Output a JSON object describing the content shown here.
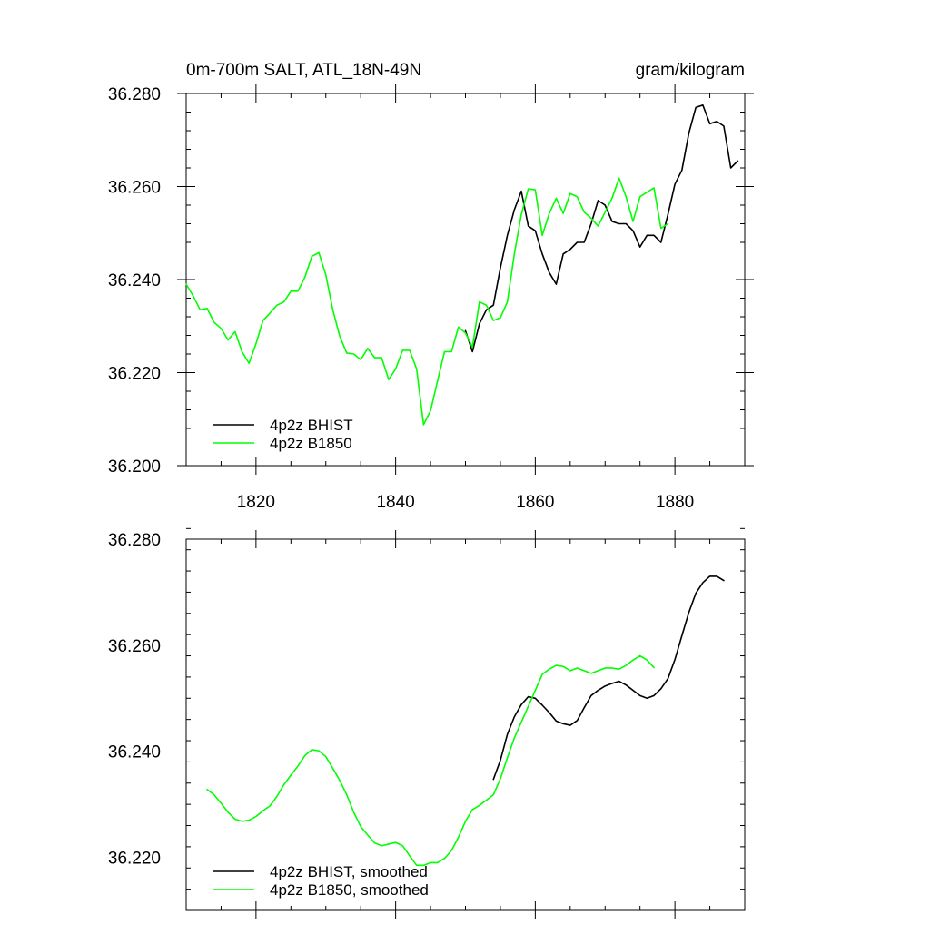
{
  "colors": {
    "bhist": "#000000",
    "b1850": "#00ff00",
    "frame": "#000000"
  },
  "chart_data": [
    {
      "type": "line",
      "title": "0m-700m SALT, ATL_18N-49N",
      "units": "gram/kilogram",
      "xlim": [
        1810,
        1890
      ],
      "ylim": [
        36.2,
        36.28
      ],
      "xticks": [
        1820,
        1840,
        1860,
        1880
      ],
      "xtick_labels": [
        "1820",
        "1840",
        "1860",
        "1880"
      ],
      "yticks": [
        36.2,
        36.22,
        36.24,
        36.26,
        36.28
      ],
      "ytick_labels": [
        "36.200",
        "36.220",
        "36.240",
        "36.260",
        "36.280"
      ],
      "legend_position": "bottom-left",
      "series": [
        {
          "name": "4p2z BHIST",
          "color": "#000000",
          "x": [
            1850,
            1851,
            1852,
            1853,
            1854,
            1855,
            1856,
            1857,
            1858,
            1859,
            1860,
            1861,
            1862,
            1863,
            1864,
            1865,
            1866,
            1867,
            1868,
            1869,
            1870,
            1871,
            1872,
            1873,
            1874,
            1875,
            1876,
            1877,
            1878,
            1879,
            1880,
            1881,
            1882,
            1883,
            1884,
            1885,
            1886,
            1887,
            1888,
            1889
          ],
          "values": [
            36.229,
            36.2245,
            36.2305,
            36.2335,
            36.2345,
            36.2425,
            36.2495,
            36.255,
            36.259,
            36.2515,
            36.2505,
            36.2455,
            36.2415,
            36.239,
            36.2455,
            36.2465,
            36.248,
            36.248,
            36.252,
            36.257,
            36.256,
            36.2525,
            36.252,
            36.252,
            36.2505,
            36.247,
            36.2495,
            36.2495,
            36.248,
            36.254,
            36.2605,
            36.2635,
            36.2715,
            36.277,
            36.2775,
            36.2735,
            36.274,
            36.273,
            36.264,
            36.2655
          ]
        },
        {
          "name": "4p2z B1850",
          "color": "#00ff00",
          "x": [
            1810,
            1811,
            1812,
            1813,
            1814,
            1815,
            1816,
            1817,
            1818,
            1819,
            1820,
            1821,
            1822,
            1823,
            1824,
            1825,
            1826,
            1827,
            1828,
            1829,
            1830,
            1831,
            1832,
            1833,
            1834,
            1835,
            1836,
            1837,
            1838,
            1839,
            1840,
            1841,
            1842,
            1843,
            1844,
            1845,
            1846,
            1847,
            1848,
            1849,
            1850,
            1851,
            1852,
            1853,
            1854,
            1855,
            1856,
            1857,
            1858,
            1859,
            1860,
            1861,
            1862,
            1863,
            1864,
            1865,
            1866,
            1867,
            1868,
            1869,
            1870,
            1871,
            1872,
            1873,
            1874,
            1875,
            1876,
            1877,
            1878,
            1879,
            1880
          ],
          "values": [
            36.239,
            36.2365,
            36.2335,
            36.2338,
            36.2308,
            36.2295,
            36.227,
            36.2288,
            36.2245,
            36.222,
            36.2262,
            36.2312,
            36.2328,
            36.2345,
            36.2352,
            36.2375,
            36.2375,
            36.2405,
            36.245,
            36.2458,
            36.241,
            36.2335,
            36.2278,
            36.2242,
            36.224,
            36.2228,
            36.2252,
            36.2232,
            36.2232,
            36.2185,
            36.2208,
            36.2248,
            36.2248,
            36.2208,
            36.2088,
            36.2118,
            36.2182,
            36.2245,
            36.2245,
            36.2298,
            36.2285,
            36.2255,
            36.2352,
            36.2345,
            36.2312,
            36.2318,
            36.2352,
            36.2455,
            36.254,
            36.2595,
            36.2593,
            36.2495,
            36.2542,
            36.2575,
            36.2542,
            36.2585,
            36.2578,
            36.2545,
            36.2532,
            36.2515,
            36.2545,
            36.2575,
            36.2618,
            36.2578,
            36.2525,
            36.2578,
            36.2588,
            36.2597,
            36.251,
            36.252,
            null
          ]
        }
      ]
    },
    {
      "type": "line",
      "title": "",
      "xlim": [
        1810,
        1890
      ],
      "ylim": [
        36.21,
        36.28
      ],
      "xticks": [
        1820,
        1840,
        1860,
        1880
      ],
      "yticks": [
        36.22,
        36.24,
        36.26,
        36.28
      ],
      "ytick_labels": [
        "36.220",
        "36.240",
        "36.260",
        "36.280"
      ],
      "legend_position": "bottom-left",
      "series": [
        {
          "name": "4p2z BHIST, smoothed",
          "color": "#000000",
          "x": [
            1854,
            1855,
            1856,
            1857,
            1858,
            1859,
            1860,
            1861,
            1862,
            1863,
            1864,
            1865,
            1866,
            1867,
            1868,
            1869,
            1870,
            1871,
            1872,
            1873,
            1874,
            1875,
            1876,
            1877,
            1878,
            1879,
            1880,
            1881,
            1882,
            1883,
            1884,
            1885,
            1886,
            1887,
            1888
          ],
          "values": [
            36.2347,
            36.2383,
            36.2432,
            36.2465,
            36.2488,
            36.2503,
            36.25,
            36.2487,
            36.2473,
            36.2457,
            36.2452,
            36.2449,
            36.2458,
            36.2482,
            36.2505,
            36.2515,
            36.2523,
            36.2528,
            36.2532,
            36.2525,
            36.2515,
            36.2505,
            36.25,
            36.2505,
            36.2518,
            36.2537,
            36.2573,
            36.2618,
            36.2662,
            36.2698,
            36.2718,
            36.273,
            36.273,
            36.2722,
            null
          ]
        },
        {
          "name": "4p2z B1850, smoothed",
          "color": "#00ff00",
          "x": [
            1813,
            1814,
            1815,
            1816,
            1817,
            1818,
            1819,
            1820,
            1821,
            1822,
            1823,
            1824,
            1825,
            1826,
            1827,
            1828,
            1829,
            1830,
            1831,
            1832,
            1833,
            1834,
            1835,
            1836,
            1837,
            1838,
            1839,
            1840,
            1841,
            1842,
            1843,
            1844,
            1845,
            1846,
            1847,
            1848,
            1849,
            1850,
            1851,
            1852,
            1853,
            1854,
            1855,
            1856,
            1857,
            1858,
            1859,
            1860,
            1861,
            1862,
            1863,
            1864,
            1865,
            1866,
            1867,
            1868,
            1869,
            1870,
            1871,
            1872,
            1873,
            1874,
            1875,
            1876,
            1877
          ],
          "values": [
            36.2328,
            36.2318,
            36.2302,
            36.2285,
            36.2272,
            36.2268,
            36.227,
            36.2277,
            36.2288,
            36.2297,
            36.2315,
            36.2337,
            36.2355,
            36.2372,
            36.2392,
            36.2403,
            36.2401,
            36.239,
            36.2368,
            36.2345,
            36.2318,
            36.2285,
            36.2258,
            36.2242,
            36.2227,
            36.2222,
            36.2225,
            36.2228,
            36.2222,
            36.2203,
            36.2185,
            36.2185,
            36.219,
            36.219,
            36.2198,
            36.2213,
            36.2238,
            36.2268,
            36.229,
            36.2298,
            36.2308,
            36.2318,
            36.2348,
            36.2388,
            36.2425,
            36.2455,
            36.2485,
            36.2515,
            36.2545,
            36.2555,
            36.2562,
            36.256,
            36.2552,
            36.2557,
            36.2552,
            36.2547,
            36.2552,
            36.2557,
            36.2557,
            36.2555,
            36.2562,
            36.2572,
            36.258,
            36.2572,
            36.2558
          ]
        }
      ]
    }
  ]
}
